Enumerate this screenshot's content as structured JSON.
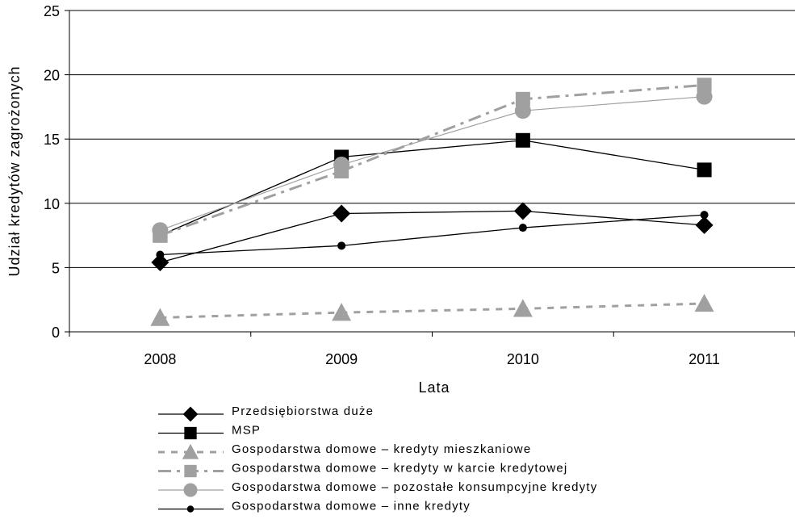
{
  "chart_data": {
    "type": "line",
    "title": "",
    "xlabel": "Lata",
    "ylabel": "Udział kredytów zagrożonych",
    "categories": [
      "2008",
      "2009",
      "2010",
      "2011"
    ],
    "ylim": [
      0,
      25
    ],
    "yticks": [
      "0",
      "5",
      "10",
      "15",
      "20",
      "25"
    ],
    "grid": "horizontal",
    "legend_position": "bottom",
    "series": [
      {
        "name": "Przedsiębiorstwa duże",
        "values": [
          5.4,
          9.2,
          9.4,
          8.3
        ],
        "color": "#000000",
        "marker": "diamond",
        "line": "solid"
      },
      {
        "name": "MSP",
        "values": [
          7.5,
          13.6,
          14.9,
          12.6
        ],
        "color": "#000000",
        "marker": "square",
        "line": "solid"
      },
      {
        "name": "Gospodarstwa domowe – kredyty mieszkaniowe",
        "values": [
          1.1,
          1.5,
          1.8,
          2.2
        ],
        "color": "#a0a0a0",
        "marker": "triangle",
        "line": "dotted"
      },
      {
        "name": "Gospodarstwa domowe – kredyty w karcie kredytowej",
        "values": [
          7.5,
          12.5,
          18.1,
          19.2
        ],
        "color": "#a0a0a0",
        "marker": "square",
        "line": "dashdot"
      },
      {
        "name": "Gospodarstwa domowe – pozostałe konsumpcyjne kredyty",
        "values": [
          7.9,
          13.0,
          17.2,
          18.3
        ],
        "color": "#a0a0a0",
        "marker": "circle",
        "line": "thin"
      },
      {
        "name": "Gospodarstwa domowe – inne kredyty",
        "values": [
          6.0,
          6.7,
          8.1,
          9.1
        ],
        "color": "#000000",
        "marker": "dot",
        "line": "solid"
      }
    ]
  }
}
